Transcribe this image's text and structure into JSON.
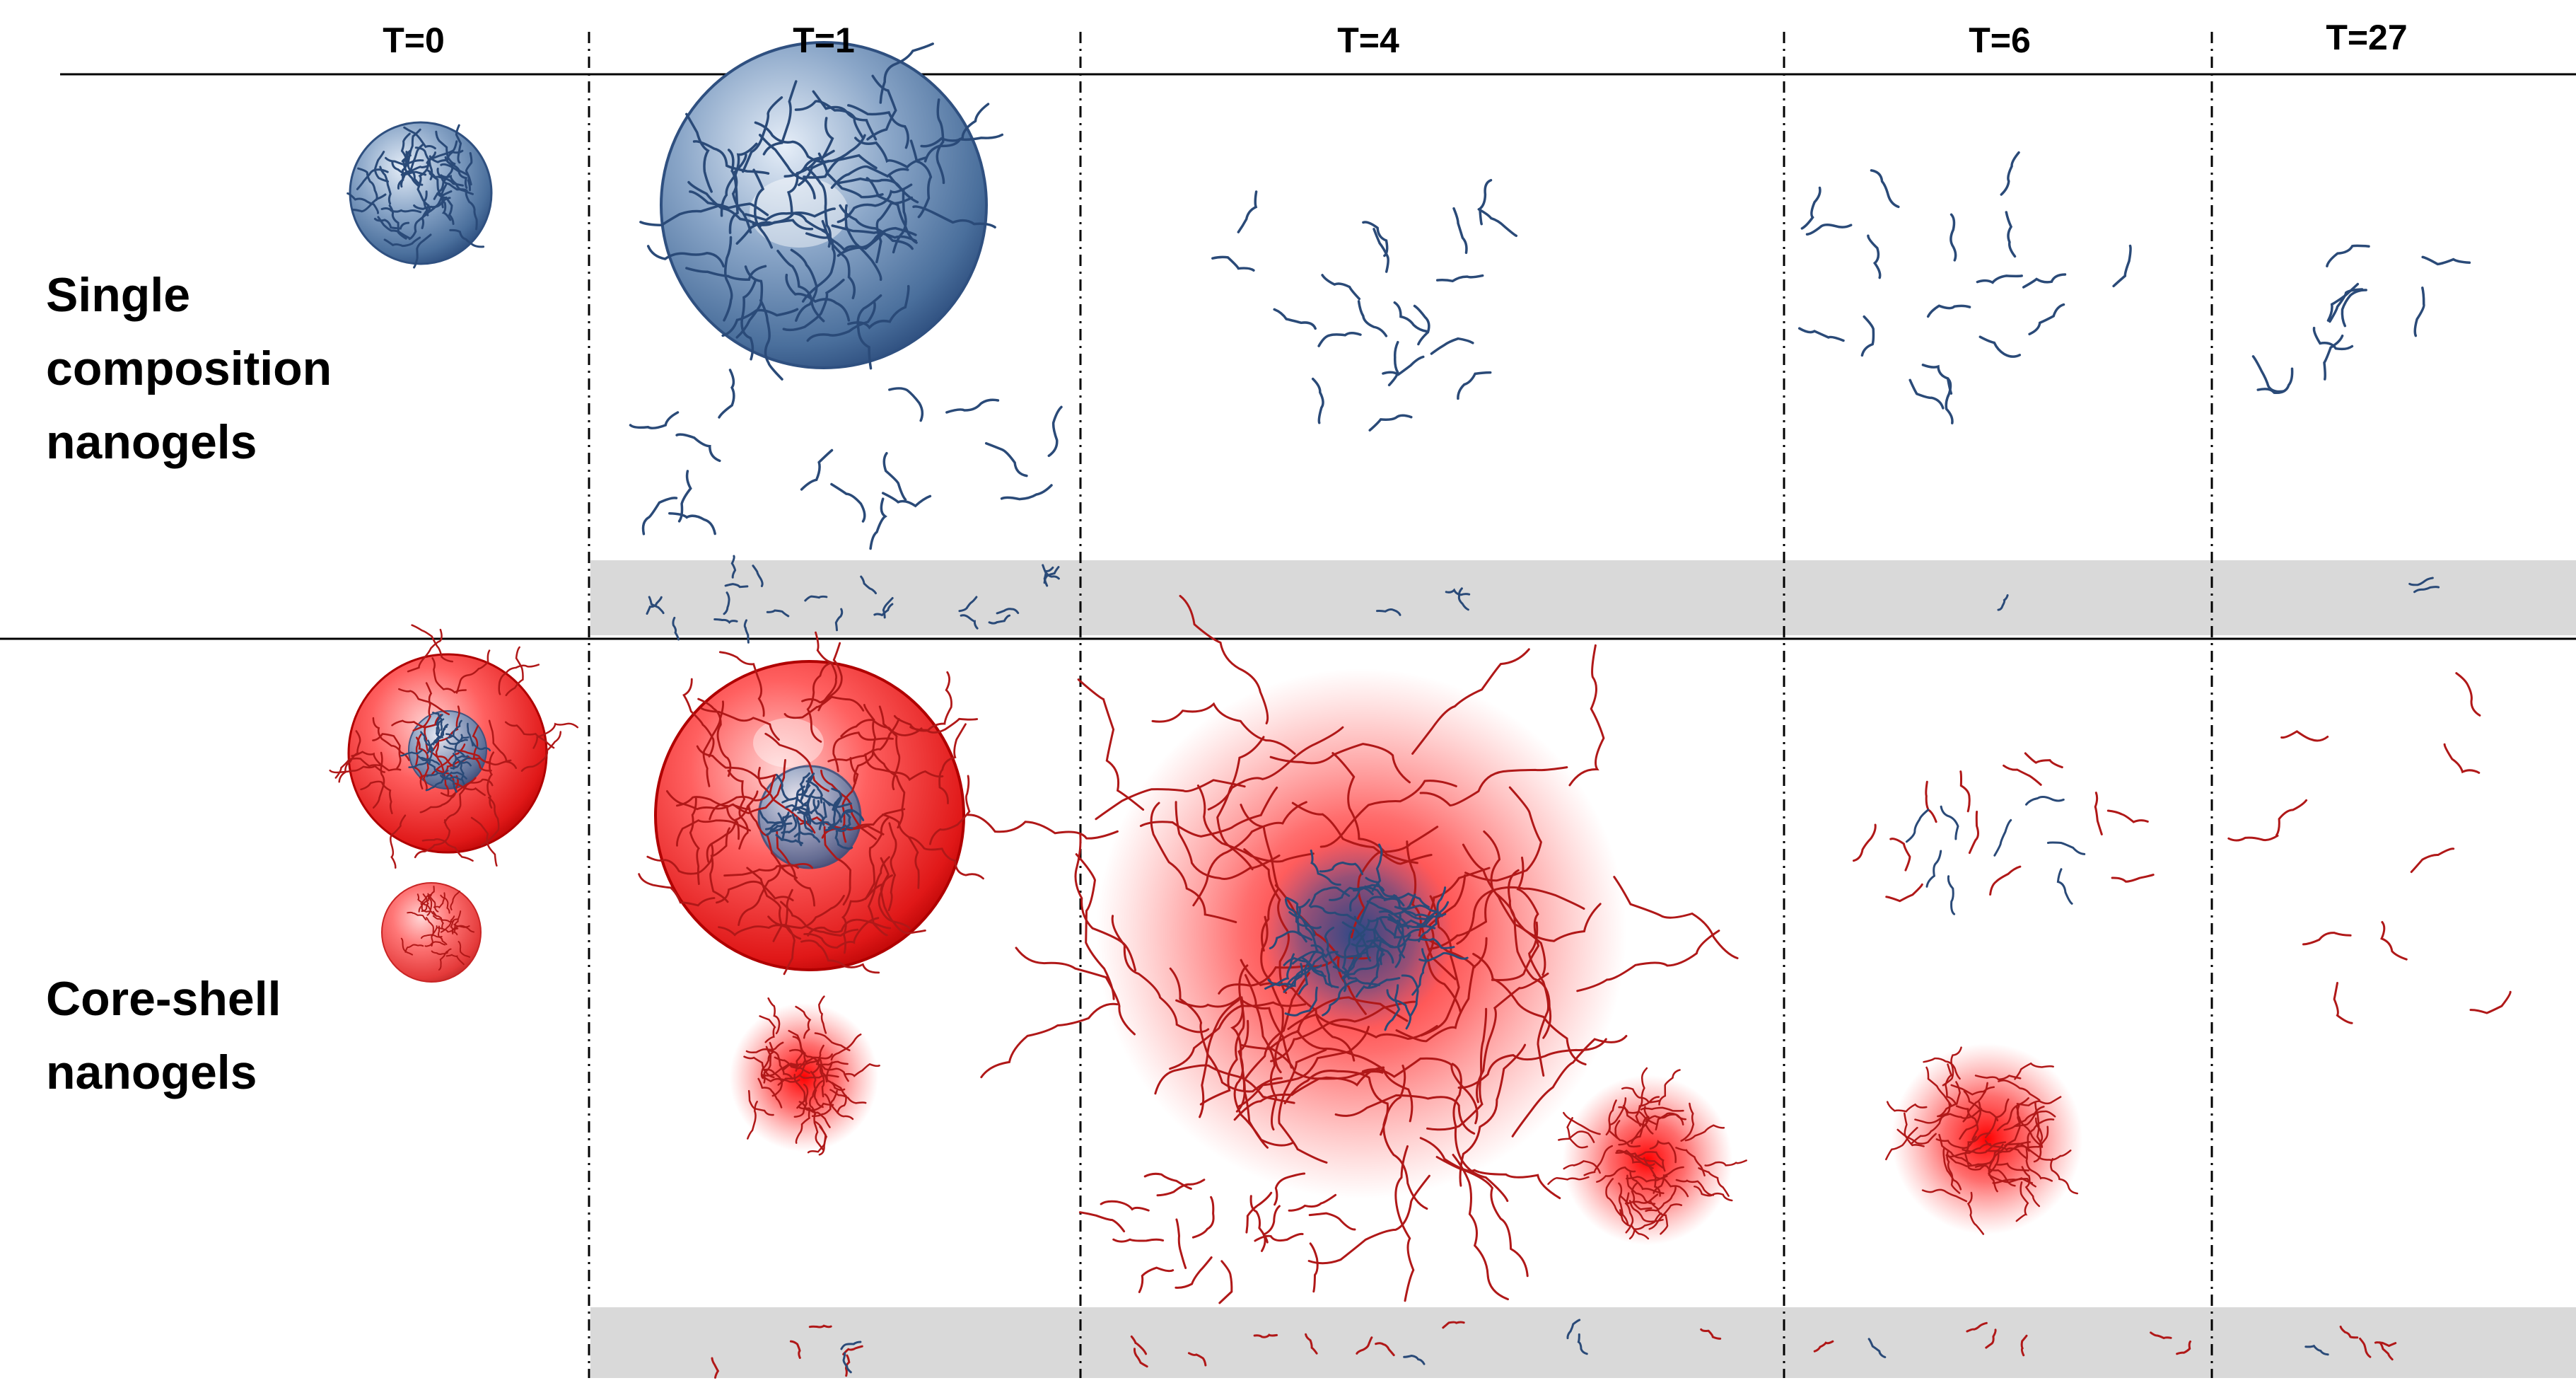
{
  "timepoints": [
    "T=0",
    "T=1",
    "T=4",
    "T=6",
    "T=27"
  ],
  "rows": {
    "single": {
      "lines": [
        "Single",
        "composition",
        "nanogels"
      ]
    },
    "coreshell": {
      "lines": [
        "Core-shell",
        "nanogels"
      ]
    }
  },
  "colors": {
    "blue_polymer": "#2a4a78",
    "red_polymer": "#b01818",
    "shell_red": "#e82020",
    "band_grey": "#d9d9d9",
    "rule": "#000000"
  }
}
